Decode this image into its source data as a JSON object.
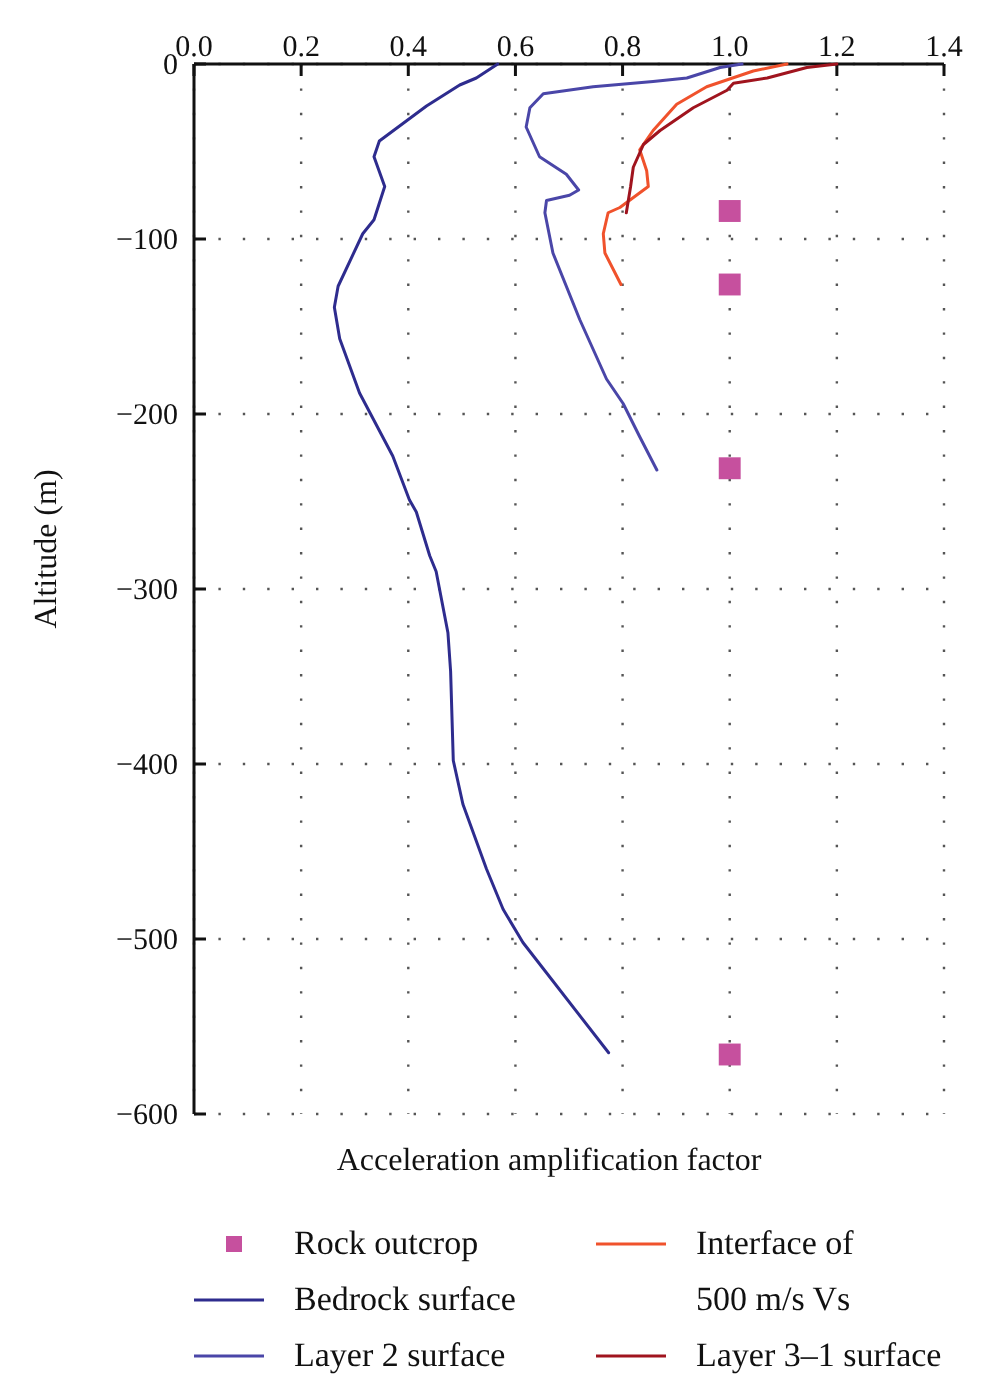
{
  "chart_data": {
    "type": "line",
    "xlabel": "Acceleration amplification factor",
    "ylabel": "Altitude (m)",
    "xlim": [
      0,
      1.4
    ],
    "xticks": [
      {
        "value": 0,
        "label": "0.0"
      },
      0.2,
      0.4,
      0.6,
      0.8,
      {
        "value": 1,
        "label": "1.0"
      },
      1.2,
      1.4
    ],
    "ylim": [
      -600,
      0
    ],
    "yticks": [
      -600,
      -500,
      -400,
      -300,
      -200,
      -100,
      0
    ],
    "grid": true,
    "legend": "bottom",
    "marker": "none",
    "line_style": "solid",
    "series": [
      {
        "name": "Rock outcrop",
        "type": "scatter",
        "marker": "square",
        "color": "#c6509e",
        "x": [
          1.0,
          1.0,
          1.0,
          1.0
        ],
        "values": [
          -84,
          -126,
          -231,
          -566
        ]
      },
      {
        "name": "Bedrock surface",
        "color": "#2e2c8e",
        "x": [
          0.567,
          0.527,
          0.496,
          0.434,
          0.346,
          0.336,
          0.356,
          0.336,
          0.315,
          0.269,
          0.262,
          0.272,
          0.309,
          0.371,
          0.402,
          0.415,
          0.44,
          0.452,
          0.474,
          0.479,
          0.484,
          0.502,
          0.546,
          0.577,
          0.614,
          0.774
        ],
        "values": [
          0,
          -8,
          -12,
          -24,
          -44,
          -53,
          -70,
          -89,
          -97,
          -127,
          -139,
          -157,
          -188,
          -224,
          -249,
          -256,
          -281,
          -290,
          -325,
          -347,
          -398,
          -423,
          -460,
          -483,
          -502,
          -565
        ]
      },
      {
        "name": "Layer 2 surface",
        "color": "#4a46a8",
        "x": [
          1.023,
          0.982,
          0.92,
          0.857,
          0.745,
          0.652,
          0.627,
          0.62,
          0.645,
          0.695,
          0.718,
          0.701,
          0.658,
          0.655,
          0.67,
          0.72,
          0.77,
          0.801,
          0.832,
          0.864
        ],
        "values": [
          0,
          -2,
          -8,
          -10,
          -13,
          -17,
          -25,
          -36,
          -53,
          -63,
          -72,
          -75,
          -78,
          -85,
          -108,
          -146,
          -180,
          -194,
          -213,
          -232
        ]
      },
      {
        "name": "Interface of 500 m/s Vs",
        "color": "#f0522c",
        "x": [
          1.107,
          1.044,
          0.957,
          0.901,
          0.857,
          0.832,
          0.845,
          0.848,
          0.795,
          0.773,
          0.764,
          0.767,
          0.797
        ],
        "values": [
          0,
          -4,
          -13,
          -23,
          -38,
          -49,
          -61,
          -70,
          -82,
          -85,
          -97,
          -108,
          -126
        ]
      },
      {
        "name": "Layer 3–1 surface",
        "color": "#a0141e",
        "x": [
          1.2,
          1.144,
          1.07,
          1.007,
          0.995,
          0.932,
          0.87,
          0.839,
          0.82,
          0.815,
          0.807
        ],
        "values": [
          0,
          -2,
          -8,
          -11,
          -15,
          -25,
          -38,
          -46,
          -59,
          -70,
          -85
        ]
      }
    ]
  }
}
